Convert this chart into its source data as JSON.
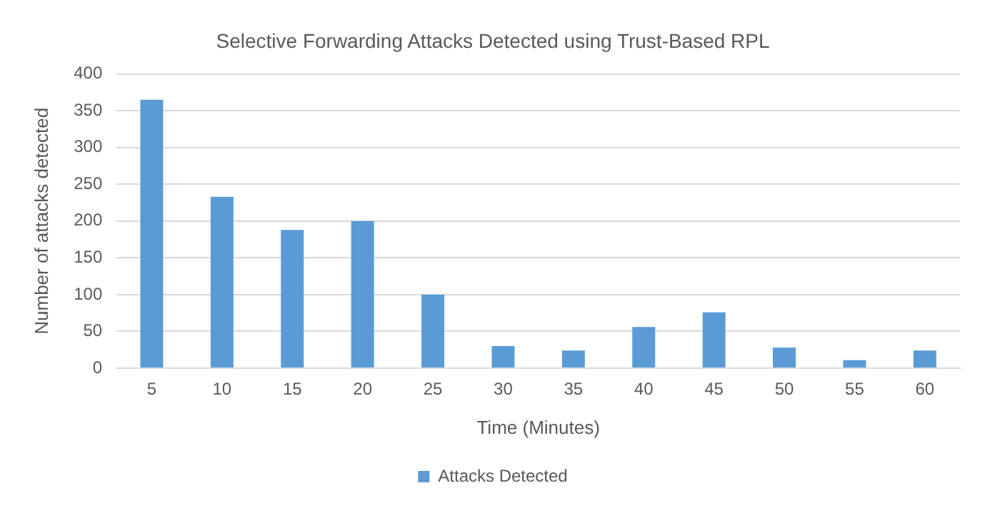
{
  "chart_data": {
    "type": "bar",
    "title": "Selective Forwarding Attacks Detected using Trust-Based RPL",
    "xlabel": "Time (Minutes)",
    "ylabel": "Number of attacks detected",
    "categories": [
      "5",
      "10",
      "15",
      "20",
      "25",
      "30",
      "35",
      "40",
      "45",
      "50",
      "55",
      "60"
    ],
    "series": [
      {
        "name": "Attacks Detected",
        "color": "#5b9bd5",
        "values": [
          365,
          233,
          188,
          200,
          100,
          30,
          24,
          56,
          76,
          28,
          11,
          24
        ]
      }
    ],
    "ylim": [
      0,
      400
    ],
    "yticks": [
      0,
      50,
      100,
      150,
      200,
      250,
      300,
      350,
      400
    ],
    "grid": "y",
    "legend": "bottom"
  }
}
